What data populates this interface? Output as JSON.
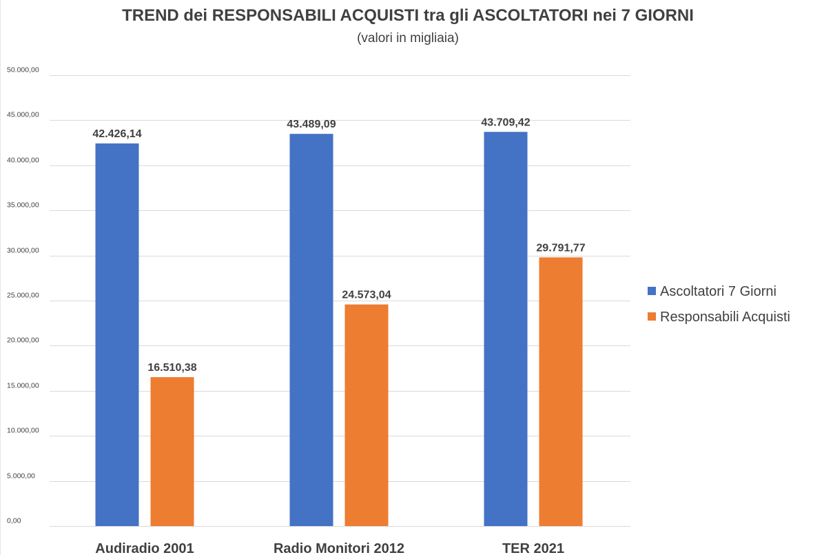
{
  "chart_data": {
    "type": "bar",
    "title": "TREND dei RESPONSABILI ACQUISTI tra gli ASCOLTATORI nei 7 GIORNI",
    "subtitle": "(valori in migliaia)",
    "categories": [
      "Audiradio 2001",
      "Radio Monitori 2012",
      "TER 2021"
    ],
    "series": [
      {
        "name": "Ascoltatori 7 Giorni",
        "color": "#4472C4",
        "values": [
          42426.14,
          43489.09,
          43709.42
        ],
        "labels": [
          "42.426,14",
          "43.489,09",
          "43.709,42"
        ]
      },
      {
        "name": "Responsabili Acquisti",
        "color": "#ED7D31",
        "values": [
          16510.38,
          24573.04,
          29791.77
        ],
        "labels": [
          "16.510,38",
          "24.573,04",
          "29.791,77"
        ]
      }
    ],
    "ylim": [
      0,
      50000
    ],
    "yticks": [
      {
        "value": 0,
        "label": "0,00"
      },
      {
        "value": 5000,
        "label": "5.000,00"
      },
      {
        "value": 10000,
        "label": "10.000,00"
      },
      {
        "value": 15000,
        "label": "15.000,00"
      },
      {
        "value": 20000,
        "label": "20.000,00"
      },
      {
        "value": 25000,
        "label": "25.000,00"
      },
      {
        "value": 30000,
        "label": "30.000,00"
      },
      {
        "value": 35000,
        "label": "35.000,00"
      },
      {
        "value": 40000,
        "label": "40.000,00"
      },
      {
        "value": 45000,
        "label": "45.000,00"
      },
      {
        "value": 50000,
        "label": "50.000,00"
      }
    ],
    "grid": true,
    "legend_position": "right"
  }
}
